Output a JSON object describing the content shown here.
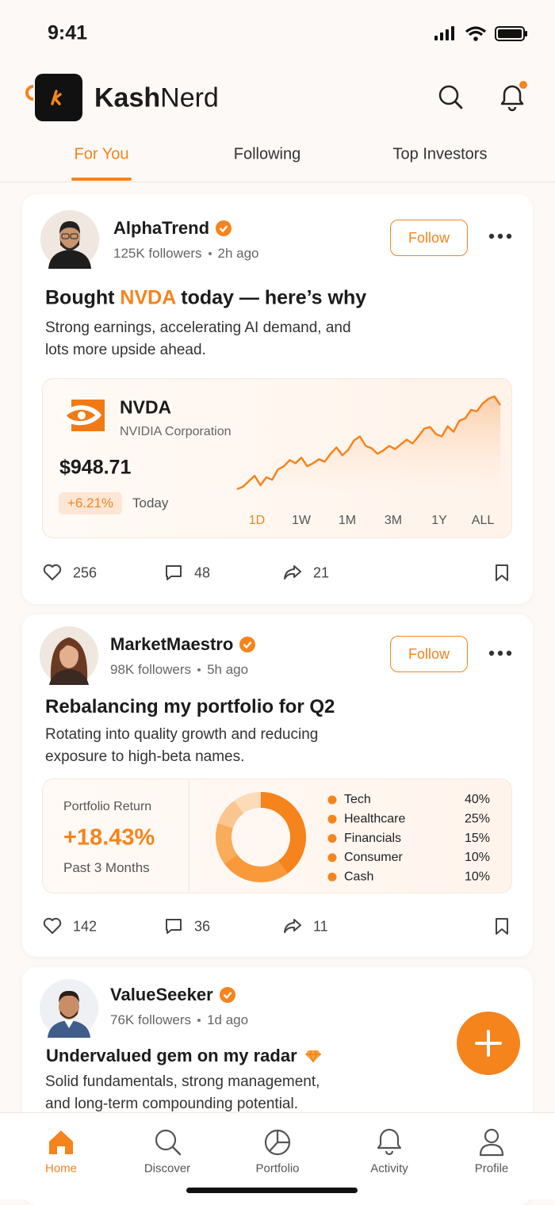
{
  "status_bar": {
    "time": "9:41"
  },
  "header": {
    "brand_bold": "Kash",
    "brand_regular": "Nerd"
  },
  "tabs": {
    "items": [
      "For You",
      "Following",
      "Top Investors"
    ],
    "active": 0
  },
  "posts": [
    {
      "author": "AlphaTrend",
      "followers": "125K followers",
      "time": "2h ago",
      "follow": "Follow",
      "title": [
        "Bought ",
        "NVDA",
        " today — here’s why"
      ],
      "body": "Strong earnings, accelerating AI demand, and lots more upside ahead.",
      "stock": {
        "ticker": "NVDA",
        "name": "NVIDIA Corporation",
        "price": "$948.71",
        "change": "+6.21%",
        "period": "Today",
        "ranges": [
          "1D",
          "1W",
          "1M",
          "3M",
          "1Y",
          "ALL"
        ],
        "active_range": 0,
        "sparkline": [
          2,
          5,
          12,
          19,
          7,
          17,
          14,
          27,
          31,
          39,
          35,
          42,
          31,
          35,
          40,
          37,
          47,
          55,
          45,
          52,
          64,
          69,
          57,
          54,
          47,
          51,
          57,
          53,
          59,
          65,
          60,
          69,
          79,
          81,
          72,
          69,
          82,
          75,
          89,
          92,
          103,
          101,
          111,
          117,
          120,
          109
        ]
      },
      "likes": "256",
      "comments": "48",
      "shares": "21"
    },
    {
      "author": "MarketMaestro",
      "followers": "98K followers",
      "time": "5h ago",
      "follow": "Follow",
      "title": [
        "Rebalancing my portfolio for Q2"
      ],
      "body": "Rotating into quality growth and reducing exposure to high-beta names.",
      "portfolio": {
        "label": "Portfolio Return",
        "value": "+18.43%",
        "period": "Past 3 Months",
        "allocation": [
          {
            "label": "Tech",
            "value": 40,
            "value_label": "40%",
            "color": "#f5841c"
          },
          {
            "label": "Healthcare",
            "value": 25,
            "value_label": "25%",
            "color": "#f89a3a"
          },
          {
            "label": "Financials",
            "value": 15,
            "value_label": "15%",
            "color": "#f9ac5a"
          },
          {
            "label": "Consumer",
            "value": 10,
            "value_label": "10%",
            "color": "#fbc58f"
          },
          {
            "label": "Cash",
            "value": 10,
            "value_label": "10%",
            "color": "#fcdcb8"
          }
        ]
      },
      "likes": "142",
      "comments": "36",
      "shares": "11"
    },
    {
      "author": "ValueSeeker",
      "followers": "76K followers",
      "time": "1d ago",
      "title": [
        "Undervalued gem on my radar"
      ],
      "body": "Solid fundamentals, strong management, and long-term compounding potential."
    }
  ],
  "nav": {
    "items": [
      "Home",
      "Discover",
      "Portfolio",
      "Activity",
      "Profile"
    ],
    "active": 0
  }
}
